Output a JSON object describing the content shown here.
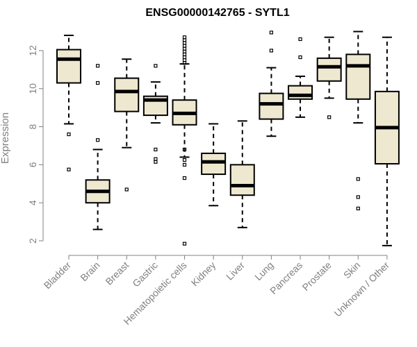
{
  "chart_data": {
    "type": "box",
    "title": "ENSG00000142765 - SYTL1",
    "xlabel": "",
    "ylabel": "Expression",
    "ylim": [
      1.6,
      13.2
    ],
    "yticks": [
      2,
      4,
      6,
      8,
      10,
      12
    ],
    "categories": [
      "Bladder",
      "Brain",
      "Breast",
      "Gastric",
      "Hematopoietic cells",
      "Kidney",
      "Liver",
      "Lung",
      "Pancreas",
      "Prostate",
      "Skin",
      "Unknown / Other"
    ],
    "boxes": [
      {
        "category": "Bladder",
        "whisker_low": 8.15,
        "q1": 10.3,
        "median": 11.55,
        "q3": 12.05,
        "whisker_high": 12.8,
        "outliers": [
          7.6,
          5.75
        ]
      },
      {
        "category": "Brain",
        "whisker_low": 2.6,
        "q1": 4.0,
        "median": 4.6,
        "q3": 5.2,
        "whisker_high": 6.8,
        "outliers": [
          11.2,
          10.3,
          7.3
        ]
      },
      {
        "category": "Breast",
        "whisker_low": 6.9,
        "q1": 8.8,
        "median": 9.85,
        "q3": 10.55,
        "whisker_high": 11.55,
        "outliers": [
          4.7
        ]
      },
      {
        "category": "Gastric",
        "whisker_low": 8.2,
        "q1": 8.6,
        "median": 9.4,
        "q3": 9.6,
        "whisker_high": 10.35,
        "outliers": [
          11.2,
          6.8,
          6.3,
          6.15
        ]
      },
      {
        "category": "Hematopoietic cells",
        "whisker_low": 6.4,
        "q1": 8.1,
        "median": 8.7,
        "q3": 9.4,
        "whisker_high": 11.3,
        "outliers": [
          12.7,
          12.55,
          12.4,
          12.25,
          12.1,
          11.95,
          11.8,
          11.65,
          11.5,
          11.35,
          6.8,
          6.25,
          6.0,
          5.3,
          1.85
        ]
      },
      {
        "category": "Kidney",
        "whisker_low": 3.85,
        "q1": 5.5,
        "median": 6.15,
        "q3": 6.6,
        "whisker_high": 8.15,
        "outliers": []
      },
      {
        "category": "Liver",
        "whisker_low": 2.7,
        "q1": 4.4,
        "median": 4.9,
        "q3": 6.0,
        "whisker_high": 8.3,
        "outliers": []
      },
      {
        "category": "Lung",
        "whisker_low": 7.5,
        "q1": 8.4,
        "median": 9.2,
        "q3": 9.75,
        "whisker_high": 11.1,
        "outliers": [
          12.95,
          12.0
        ]
      },
      {
        "category": "Pancreas",
        "whisker_low": 8.5,
        "q1": 9.45,
        "median": 9.65,
        "q3": 10.15,
        "whisker_high": 10.65,
        "outliers": [
          12.6,
          11.65
        ]
      },
      {
        "category": "Prostate",
        "whisker_low": 9.5,
        "q1": 10.4,
        "median": 11.15,
        "q3": 11.6,
        "whisker_high": 12.7,
        "outliers": [
          8.5
        ]
      },
      {
        "category": "Skin",
        "whisker_low": 8.2,
        "q1": 9.45,
        "median": 11.2,
        "q3": 11.8,
        "whisker_high": 13.0,
        "outliers": [
          5.25,
          4.3,
          3.7
        ]
      },
      {
        "category": "Unknown / Other",
        "whisker_low": 1.75,
        "q1": 6.05,
        "median": 7.95,
        "q3": 9.85,
        "whisker_high": 12.7,
        "outliers": []
      }
    ]
  },
  "colors": {
    "box_fill": "#EEE8D0",
    "box_stroke": "#000000",
    "median": "#000000",
    "axis": "#808080",
    "text": "#808080"
  }
}
